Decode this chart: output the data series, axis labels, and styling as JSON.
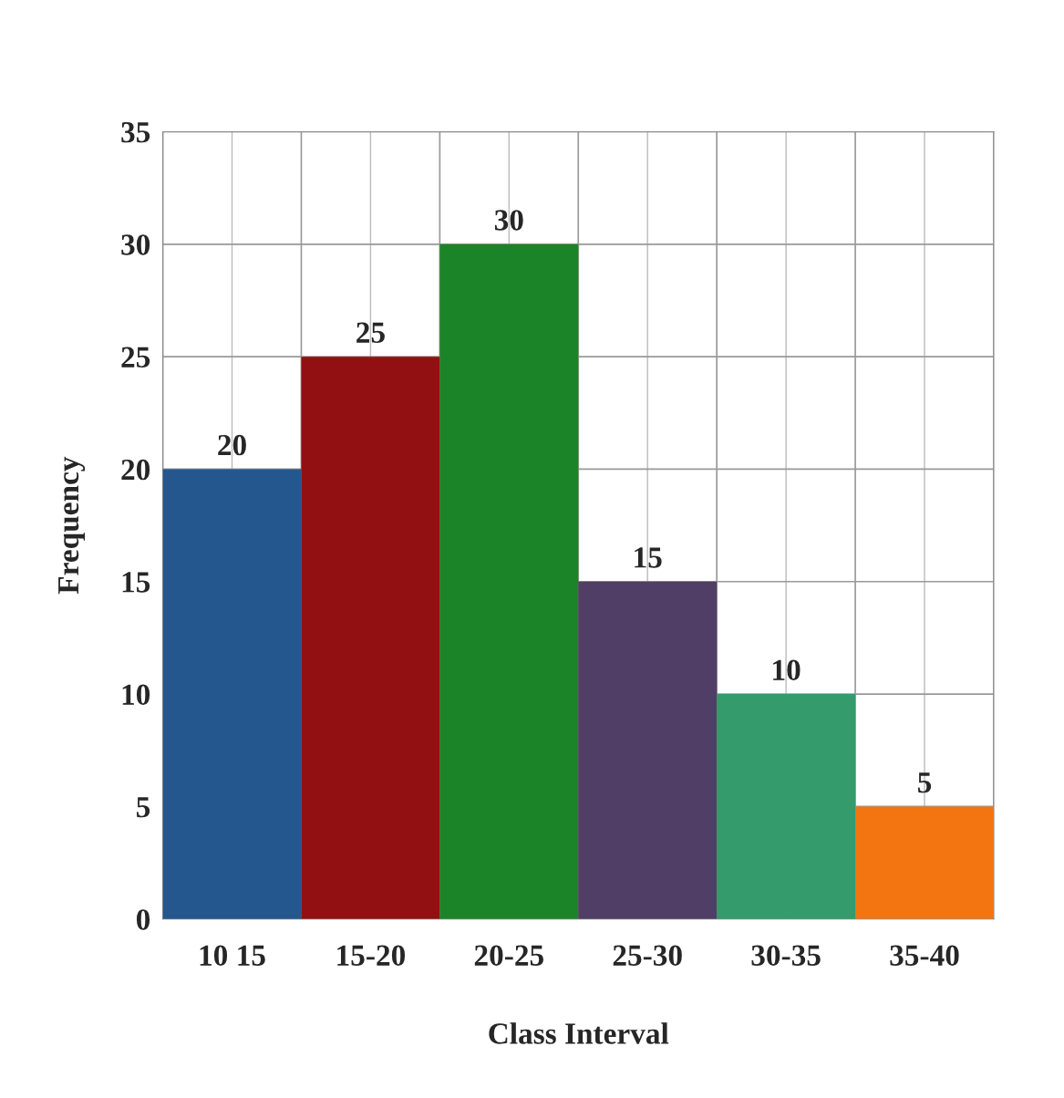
{
  "chart_data": {
    "type": "bar",
    "xlabel": "Class Interval",
    "ylabel": "Frequency",
    "categories": [
      "10 15",
      "15-20",
      "20-25",
      "25-30",
      "30-35",
      "35-40"
    ],
    "values": [
      20,
      25,
      30,
      15,
      10,
      5
    ],
    "colors": [
      "#24578e",
      "#921011",
      "#1c8428",
      "#503e66",
      "#339b6c",
      "#f37512"
    ],
    "ylim": [
      0,
      35
    ],
    "yticks": [
      0,
      5,
      10,
      15,
      20,
      25,
      30,
      35
    ],
    "grid": true,
    "data_labels": true
  }
}
